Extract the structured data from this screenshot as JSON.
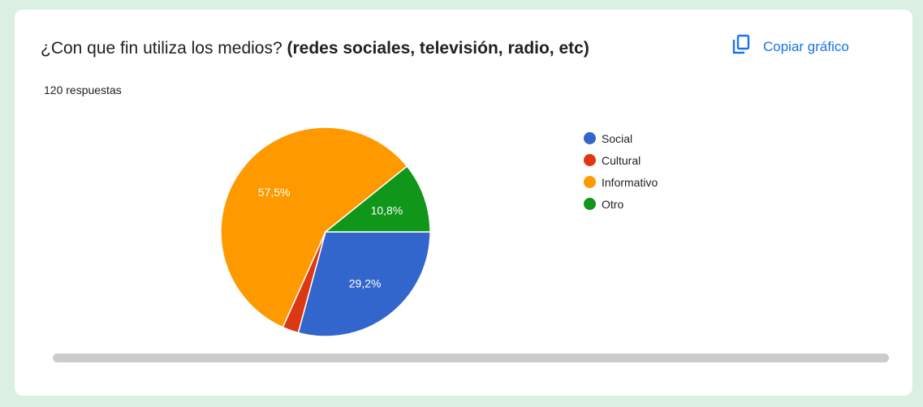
{
  "question": {
    "title_plain": "¿Con que fin utiliza los medios? ",
    "title_bold": "(redes sociales, televisión, radio, etc)",
    "responses": "120 respuestas"
  },
  "actions": {
    "copy_label": "Copiar gráfico",
    "copy_icon": "copy-icon"
  },
  "chart_data": {
    "type": "pie",
    "title": "",
    "slices": [
      {
        "label": "Social",
        "value": 29.2,
        "display": "29,2%",
        "color": "#3366cc"
      },
      {
        "label": "Cultural",
        "value": 2.5,
        "display": "",
        "color": "#dc3912"
      },
      {
        "label": "Informativo",
        "value": 57.5,
        "display": "57,5%",
        "color": "#ff9900"
      },
      {
        "label": "Otro",
        "value": 10.8,
        "display": "10,8%",
        "color": "#109618"
      }
    ],
    "start_angle_deg": 90,
    "direction": "clockwise",
    "legend_position": "right"
  }
}
